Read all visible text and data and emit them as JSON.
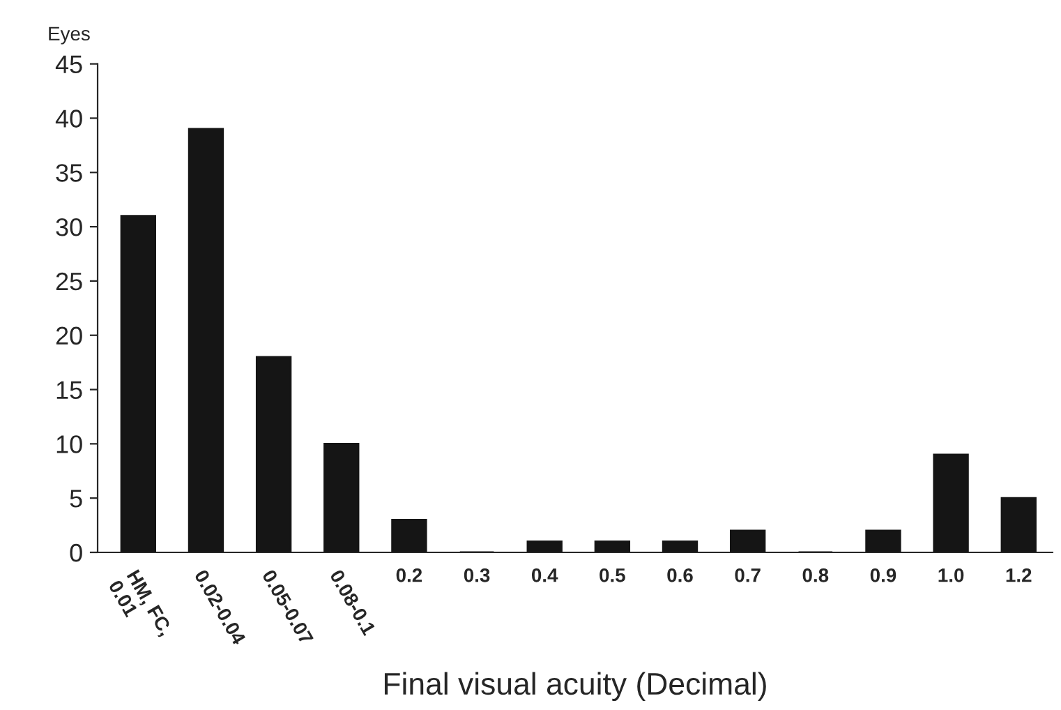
{
  "chart_data": {
    "type": "bar",
    "xlabel": "Final visual acuity (Decimal)",
    "ylabel": "Eyes",
    "categories": [
      "HM, FC,\n0.01",
      "0.02-0.04",
      "0.05-0.07",
      "0.08-0.1",
      "0.2",
      "0.3",
      "0.4",
      "0.5",
      "0.6",
      "0.7",
      "0.8",
      "0.9",
      "1.0",
      "1.2"
    ],
    "values": [
      31,
      39,
      18,
      10,
      3,
      0,
      1,
      1,
      1,
      2,
      0,
      2,
      9,
      5
    ],
    "color": "#151515",
    "ylim": [
      0,
      45
    ],
    "yticks": [
      0,
      5,
      10,
      15,
      20,
      25,
      30,
      35,
      40,
      45
    ],
    "grid": false,
    "legend": false
  }
}
